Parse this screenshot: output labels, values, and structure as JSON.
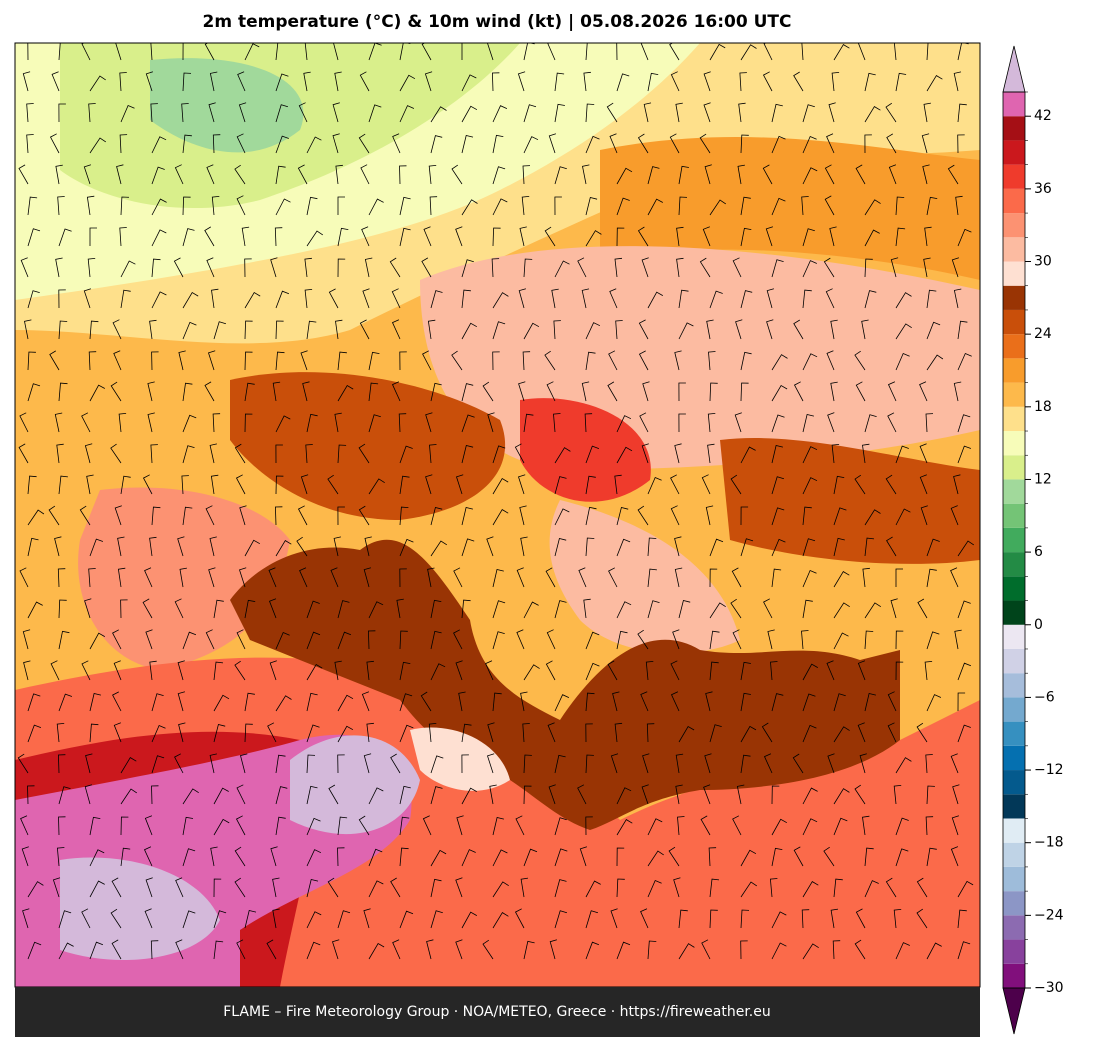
{
  "title": "2m temperature (°C) & 10m wind (kt)  |  05.08.2026 16:00 UTC",
  "footer": "FLAME – Fire Meteorology Group · NOA/METEO, Greece · https://fireweather.eu",
  "colorbar": {
    "levels": [
      -30,
      -28,
      -26,
      -24,
      -22,
      -20,
      -18,
      -16,
      -14,
      -12,
      -10,
      -8,
      -6,
      -4,
      -2,
      0,
      2,
      4,
      6,
      8,
      10,
      12,
      14,
      16,
      18,
      20,
      22,
      24,
      26,
      28,
      30,
      32,
      34,
      36,
      38,
      40,
      42,
      44
    ],
    "colors": [
      "#810f7c",
      "#88419d",
      "#8c6bb1",
      "#8c96c6",
      "#9ebcda",
      "#bfd3e6",
      "#e0ecf4",
      "#023858",
      "#045a8d",
      "#0570b0",
      "#3690c0",
      "#74a9cf",
      "#a6bddb",
      "#d0d1e6",
      "#ece7f2",
      "#00441b",
      "#006d2c",
      "#238b45",
      "#41ab5d",
      "#74c476",
      "#a1d99b",
      "#d9ef8b",
      "#f7fcb9",
      "#fee08b",
      "#fdb94b",
      "#f89c2c",
      "#ea6f1a",
      "#c94f0a",
      "#993404",
      "#fee0d2",
      "#fcbba1",
      "#fc9272",
      "#fb6a4a",
      "#ef3b2c",
      "#cb181d",
      "#a50f15",
      "#df65b0"
    ],
    "under_color": "#4d004b",
    "over_color": "#d4b9da",
    "ticks": [
      {
        "value": -30,
        "label": "−30"
      },
      {
        "value": -24,
        "label": "−24"
      },
      {
        "value": -18,
        "label": "−18"
      },
      {
        "value": -12,
        "label": "−12"
      },
      {
        "value": -6,
        "label": "−6"
      },
      0,
      6,
      12,
      18,
      24,
      30,
      36,
      42
    ]
  }
}
